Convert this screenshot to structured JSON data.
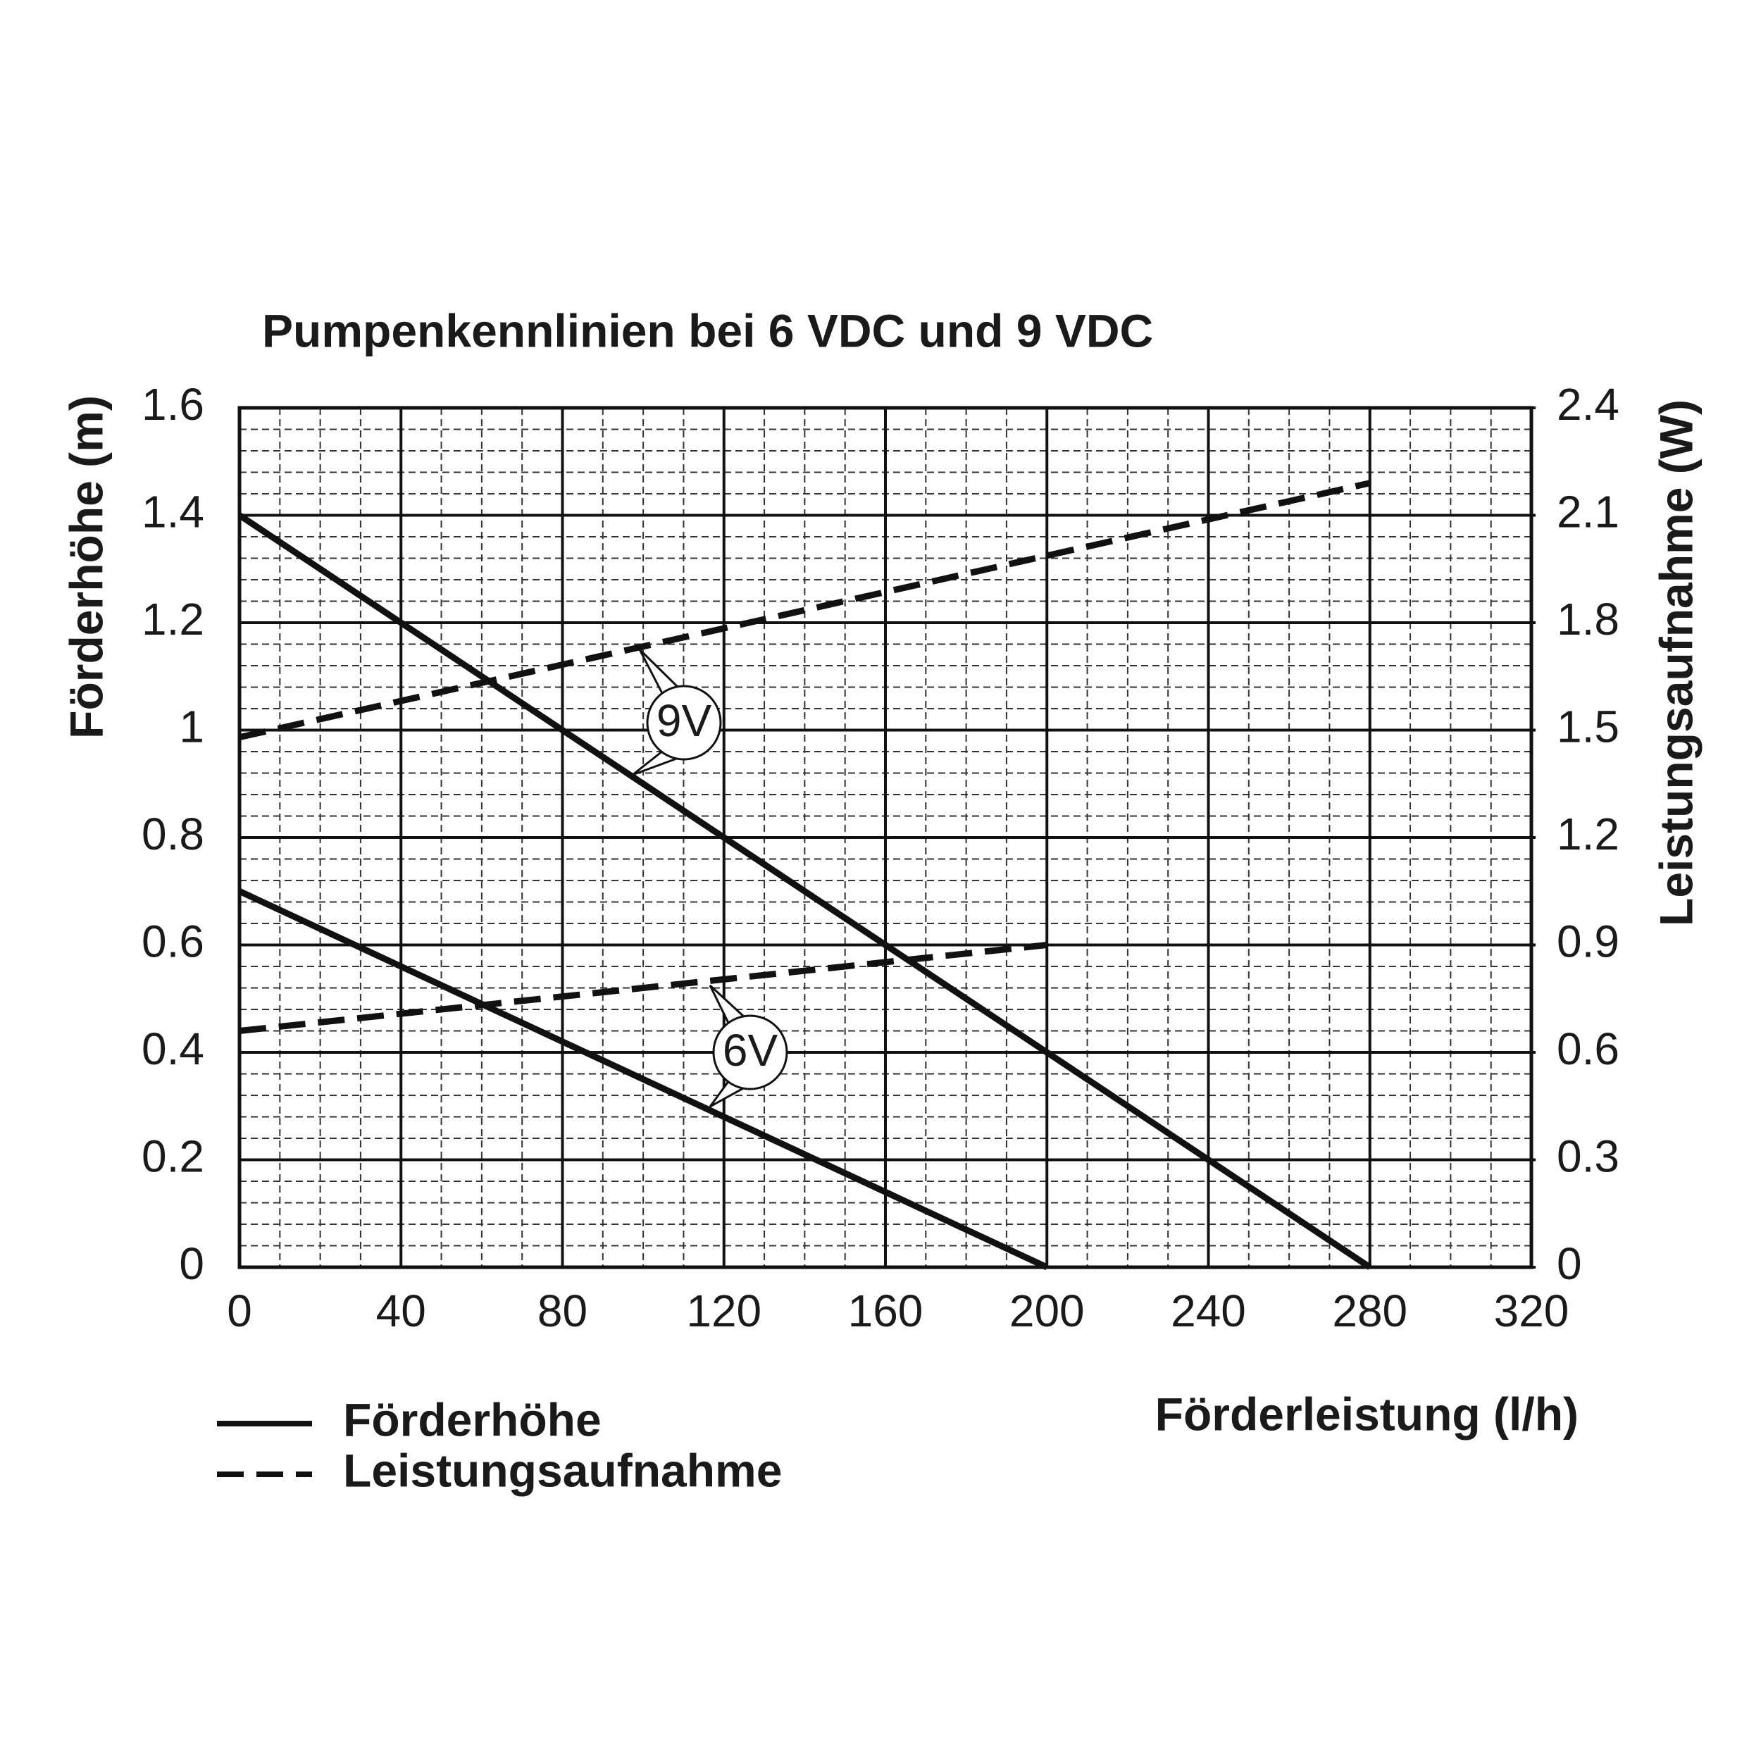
{
  "chart_data": {
    "type": "line",
    "title": "Pumpenkennlinien bei 6 VDC und 9 VDC",
    "x_label": "Förderleistung (l/h)",
    "y_label": "Förderhöhe (m)",
    "y2_label": "Leistungsaufnahme (W)",
    "xlim": [
      0,
      320
    ],
    "xticks": [
      0,
      40,
      80,
      120,
      160,
      200,
      240,
      280,
      320
    ],
    "ylim": [
      0,
      1.6
    ],
    "yticks": [
      0,
      0.2,
      0.4,
      0.6,
      0.8,
      1.0,
      1.2,
      1.4,
      1.6
    ],
    "y2lim": [
      0,
      2.4
    ],
    "y2ticks": [
      0,
      0.3,
      0.6,
      0.9,
      1.2,
      1.5,
      1.8,
      2.1,
      2.4
    ],
    "grid": true,
    "minor_grid": true,
    "color": "#111111",
    "series": [
      {
        "style": "solid",
        "x": [
          0,
          280
        ],
        "values": [
          1.4,
          0
        ]
      },
      {
        "style": "solid",
        "x": [
          0,
          200
        ],
        "values": [
          0.7,
          0
        ]
      },
      {
        "style": "dashed",
        "axis": "y2",
        "x": [
          0,
          280
        ],
        "values": [
          1.48,
          2.19
        ]
      },
      {
        "style": "dashed",
        "axis": "y2",
        "x": [
          0,
          200
        ],
        "values": [
          0.66,
          0.9
        ]
      }
    ],
    "legend": [
      {
        "label": "Förderhöhe",
        "style": "solid"
      },
      {
        "label": "Leistungsaufnahme",
        "style": "dashed"
      }
    ],
    "annotations": [
      "9V",
      "6V"
    ]
  }
}
